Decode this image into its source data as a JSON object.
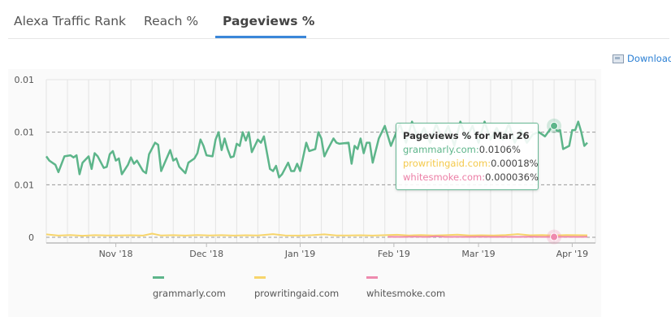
{
  "tabs": [
    {
      "label": "Alexa Traffic Rank",
      "active": false
    },
    {
      "label": "Reach %",
      "active": false
    },
    {
      "label": "Pageviews %",
      "active": true
    }
  ],
  "accent_color": "#3a86d9",
  "download": {
    "label": "Download",
    "icon": "image-icon"
  },
  "tooltip": {
    "title": "Pageviews % for Mar 26",
    "rows": [
      {
        "site": "grammarly.com:",
        "value": "0.0106%"
      },
      {
        "site": "prowritingaid.com:",
        "value": "0.00018%"
      },
      {
        "site": "whitesmoke.com:",
        "value": "0.000036%"
      }
    ]
  },
  "chart_data": {
    "type": "line",
    "title": "",
    "xlabel": "",
    "ylabel": "",
    "ylim": [
      0,
      0.015
    ],
    "xlim": [
      "2018-10-09",
      "2019-04-06"
    ],
    "y_ticks": [
      {
        "value": 0.015,
        "label": "0.01"
      },
      {
        "value": 0.01,
        "label": "0.01"
      },
      {
        "value": 0.005,
        "label": "0.01"
      },
      {
        "value": 0,
        "label": "0"
      }
    ],
    "x_ticks": [
      {
        "date": "2018-11-01",
        "label": "Nov '18"
      },
      {
        "date": "2018-12-01",
        "label": "Dec '18"
      },
      {
        "date": "2019-01-01",
        "label": "Jan '19"
      },
      {
        "date": "2019-02-01",
        "label": "Feb '19"
      },
      {
        "date": "2019-03-01",
        "label": "Mar '19"
      },
      {
        "date": "2019-04-01",
        "label": "Apr '19"
      }
    ],
    "grid": {
      "horizontal": "dashed",
      "vertical": true
    },
    "legend": "bottom",
    "highlighted_date": "2019-03-26",
    "series": [
      {
        "name": "grammarly.com",
        "color": "#5db58a",
        "points": [
          [
            "2018-10-09",
            0.0077
          ],
          [
            "2018-10-10",
            0.0073
          ],
          [
            "2018-10-12",
            0.0069
          ],
          [
            "2018-10-13",
            0.0062
          ],
          [
            "2018-10-15",
            0.0077
          ],
          [
            "2018-10-17",
            0.0078
          ],
          [
            "2018-10-18",
            0.0076
          ],
          [
            "2018-10-19",
            0.0078
          ],
          [
            "2018-10-20",
            0.006
          ],
          [
            "2018-10-21",
            0.0071
          ],
          [
            "2018-10-23",
            0.0077
          ],
          [
            "2018-10-24",
            0.0065
          ],
          [
            "2018-10-25",
            0.008
          ],
          [
            "2018-10-26",
            0.0077
          ],
          [
            "2018-10-28",
            0.0066
          ],
          [
            "2018-10-29",
            0.0067
          ],
          [
            "2018-10-30",
            0.0079
          ],
          [
            "2018-10-31",
            0.0082
          ],
          [
            "2018-11-01",
            0.0073
          ],
          [
            "2018-11-02",
            0.0075
          ],
          [
            "2018-11-03",
            0.006
          ],
          [
            "2018-11-05",
            0.0069
          ],
          [
            "2018-11-06",
            0.0076
          ],
          [
            "2018-11-07",
            0.007
          ],
          [
            "2018-11-08",
            0.0073
          ],
          [
            "2018-11-10",
            0.0063
          ],
          [
            "2018-11-11",
            0.0061
          ],
          [
            "2018-11-12",
            0.0079
          ],
          [
            "2018-11-14",
            0.009
          ],
          [
            "2018-11-15",
            0.0088
          ],
          [
            "2018-11-16",
            0.0063
          ],
          [
            "2018-11-19",
            0.0083
          ],
          [
            "2018-11-20",
            0.0073
          ],
          [
            "2018-11-21",
            0.0075
          ],
          [
            "2018-11-22",
            0.0067
          ],
          [
            "2018-11-24",
            0.0061
          ],
          [
            "2018-11-25",
            0.0071
          ],
          [
            "2018-11-27",
            0.0075
          ],
          [
            "2018-11-28",
            0.008
          ],
          [
            "2018-11-29",
            0.0093
          ],
          [
            "2018-11-30",
            0.0087
          ],
          [
            "2018-12-01",
            0.0078
          ],
          [
            "2018-12-03",
            0.0077
          ],
          [
            "2018-12-04",
            0.0093
          ],
          [
            "2018-12-05",
            0.01
          ],
          [
            "2018-12-06",
            0.0083
          ],
          [
            "2018-12-07",
            0.0094
          ],
          [
            "2018-12-08",
            0.0084
          ],
          [
            "2018-12-09",
            0.0076
          ],
          [
            "2018-12-10",
            0.0077
          ],
          [
            "2018-12-11",
            0.0089
          ],
          [
            "2018-12-12",
            0.0087
          ],
          [
            "2018-12-13",
            0.01
          ],
          [
            "2018-12-14",
            0.0092
          ],
          [
            "2018-12-15",
            0.01
          ],
          [
            "2018-12-16",
            0.0081
          ],
          [
            "2018-12-17",
            0.0087
          ],
          [
            "2018-12-18",
            0.0093
          ],
          [
            "2018-12-19",
            0.009
          ],
          [
            "2018-12-20",
            0.0096
          ],
          [
            "2018-12-22",
            0.0065
          ],
          [
            "2018-12-23",
            0.0063
          ],
          [
            "2018-12-24",
            0.0068
          ],
          [
            "2018-12-25",
            0.0057
          ],
          [
            "2018-12-26",
            0.006
          ],
          [
            "2018-12-28",
            0.0071
          ],
          [
            "2018-12-29",
            0.0063
          ],
          [
            "2018-12-30",
            0.0063
          ],
          [
            "2018-12-31",
            0.007
          ],
          [
            "2019-01-01",
            0.0063
          ],
          [
            "2019-01-03",
            0.009
          ],
          [
            "2019-01-04",
            0.0082
          ],
          [
            "2019-01-05",
            0.0083
          ],
          [
            "2019-01-06",
            0.0084
          ],
          [
            "2019-01-07",
            0.01
          ],
          [
            "2019-01-08",
            0.0094
          ],
          [
            "2019-01-09",
            0.0077
          ],
          [
            "2019-01-10",
            0.0083
          ],
          [
            "2019-01-12",
            0.0094
          ],
          [
            "2019-01-13",
            0.009
          ],
          [
            "2019-01-14",
            0.0089
          ],
          [
            "2019-01-17",
            0.009
          ],
          [
            "2019-01-18",
            0.007
          ],
          [
            "2019-01-19",
            0.0087
          ],
          [
            "2019-01-20",
            0.0084
          ],
          [
            "2019-01-21",
            0.0094
          ],
          [
            "2019-01-22",
            0.008
          ],
          [
            "2019-01-23",
            0.009
          ],
          [
            "2019-01-24",
            0.009
          ],
          [
            "2019-01-25",
            0.0071
          ],
          [
            "2019-01-27",
            0.0094
          ],
          [
            "2019-01-28",
            0.01
          ],
          [
            "2019-01-29",
            0.0106
          ],
          [
            "2019-01-31",
            0.0087
          ],
          [
            "2019-02-01",
            0.0094
          ],
          [
            "2019-02-03",
            0.0108
          ],
          [
            "2019-02-05",
            0.009
          ],
          [
            "2019-02-07",
            0.011
          ],
          [
            "2019-02-09",
            0.0093
          ],
          [
            "2019-02-11",
            0.0104
          ],
          [
            "2019-02-13",
            0.009
          ],
          [
            "2019-02-15",
            0.0108
          ],
          [
            "2019-02-17",
            0.0093
          ],
          [
            "2019-02-19",
            0.0106
          ],
          [
            "2019-02-21",
            0.0087
          ],
          [
            "2019-02-23",
            0.011
          ],
          [
            "2019-02-25",
            0.0094
          ],
          [
            "2019-02-27",
            0.0106
          ],
          [
            "2019-03-01",
            0.009
          ],
          [
            "2019-03-03",
            0.011
          ],
          [
            "2019-03-05",
            0.0093
          ],
          [
            "2019-03-07",
            0.0104
          ],
          [
            "2019-03-09",
            0.0093
          ],
          [
            "2019-03-11",
            0.0108
          ],
          [
            "2019-03-13",
            0.009
          ],
          [
            "2019-03-15",
            0.0102
          ],
          [
            "2019-03-17",
            0.009
          ],
          [
            "2019-03-19",
            0.0098
          ],
          [
            "2019-03-21",
            0.01
          ],
          [
            "2019-03-23",
            0.0096
          ],
          [
            "2019-03-25",
            0.0104
          ],
          [
            "2019-03-26",
            0.0106
          ],
          [
            "2019-03-27",
            0.0101
          ],
          [
            "2019-03-28",
            0.0102
          ],
          [
            "2019-03-29",
            0.0084
          ],
          [
            "2019-03-31",
            0.0087
          ],
          [
            "2019-04-01",
            0.0102
          ],
          [
            "2019-04-02",
            0.0102
          ],
          [
            "2019-04-03",
            0.011
          ],
          [
            "2019-04-04",
            0.01
          ],
          [
            "2019-04-05",
            0.0087
          ],
          [
            "2019-04-06",
            0.009
          ]
        ]
      },
      {
        "name": "prowritingaid.com",
        "color": "#f7d56b",
        "points": [
          [
            "2018-10-09",
            0.00028
          ],
          [
            "2018-10-13",
            0.00016
          ],
          [
            "2018-10-17",
            0.00022
          ],
          [
            "2018-10-21",
            0.00015
          ],
          [
            "2018-10-25",
            0.0002
          ],
          [
            "2018-10-29",
            0.00018
          ],
          [
            "2018-11-02",
            0.00017
          ],
          [
            "2018-11-06",
            0.00019
          ],
          [
            "2018-11-10",
            0.00016
          ],
          [
            "2018-11-13",
            0.00035
          ],
          [
            "2018-11-16",
            0.00017
          ],
          [
            "2018-11-20",
            0.0002
          ],
          [
            "2018-11-24",
            0.00016
          ],
          [
            "2018-11-28",
            0.00022
          ],
          [
            "2018-12-02",
            0.00018
          ],
          [
            "2018-12-06",
            0.0002
          ],
          [
            "2018-12-10",
            0.00016
          ],
          [
            "2018-12-14",
            0.00019
          ],
          [
            "2018-12-18",
            0.00017
          ],
          [
            "2018-12-23",
            0.0003
          ],
          [
            "2018-12-27",
            0.00018
          ],
          [
            "2019-01-01",
            0.00016
          ],
          [
            "2019-01-05",
            0.0002
          ],
          [
            "2019-01-09",
            0.00028
          ],
          [
            "2019-01-13",
            0.00018
          ],
          [
            "2019-01-17",
            0.00017
          ],
          [
            "2019-01-21",
            0.00019
          ],
          [
            "2019-01-25",
            0.00016
          ],
          [
            "2019-01-29",
            0.0002
          ],
          [
            "2019-02-02",
            0.00024
          ],
          [
            "2019-02-06",
            0.00018
          ],
          [
            "2019-02-10",
            0.00022
          ],
          [
            "2019-02-14",
            0.00017
          ],
          [
            "2019-02-18",
            0.0002
          ],
          [
            "2019-02-22",
            0.00025
          ],
          [
            "2019-02-26",
            0.00018
          ],
          [
            "2019-03-02",
            0.00019
          ],
          [
            "2019-03-06",
            0.00017
          ],
          [
            "2019-03-10",
            0.00021
          ],
          [
            "2019-03-14",
            0.0003
          ],
          [
            "2019-03-18",
            0.00019
          ],
          [
            "2019-03-22",
            0.00022
          ],
          [
            "2019-03-26",
            0.00018
          ],
          [
            "2019-03-30",
            0.00021
          ],
          [
            "2019-04-03",
            0.0002
          ],
          [
            "2019-04-06",
            0.00019
          ]
        ]
      },
      {
        "name": "whitesmoke.com",
        "color": "#ee8aae",
        "points": [
          [
            "2019-01-30",
            5e-05
          ],
          [
            "2019-02-04",
            4e-05
          ],
          [
            "2019-02-08",
            6e-05
          ],
          [
            "2019-02-12",
            4e-05
          ],
          [
            "2019-02-15",
            0.0001
          ],
          [
            "2019-02-18",
            4e-05
          ],
          [
            "2019-02-22",
            5e-05
          ],
          [
            "2019-02-26",
            4e-05
          ],
          [
            "2019-03-02",
            6e-05
          ],
          [
            "2019-03-06",
            4e-05
          ],
          [
            "2019-03-10",
            5e-05
          ],
          [
            "2019-03-14",
            4e-05
          ],
          [
            "2019-03-18",
            6e-05
          ],
          [
            "2019-03-22",
            4e-05
          ],
          [
            "2019-03-26",
            3.6e-05
          ],
          [
            "2019-03-30",
            5e-05
          ],
          [
            "2019-04-03",
            4e-05
          ],
          [
            "2019-04-06",
            5e-05
          ]
        ]
      }
    ]
  }
}
